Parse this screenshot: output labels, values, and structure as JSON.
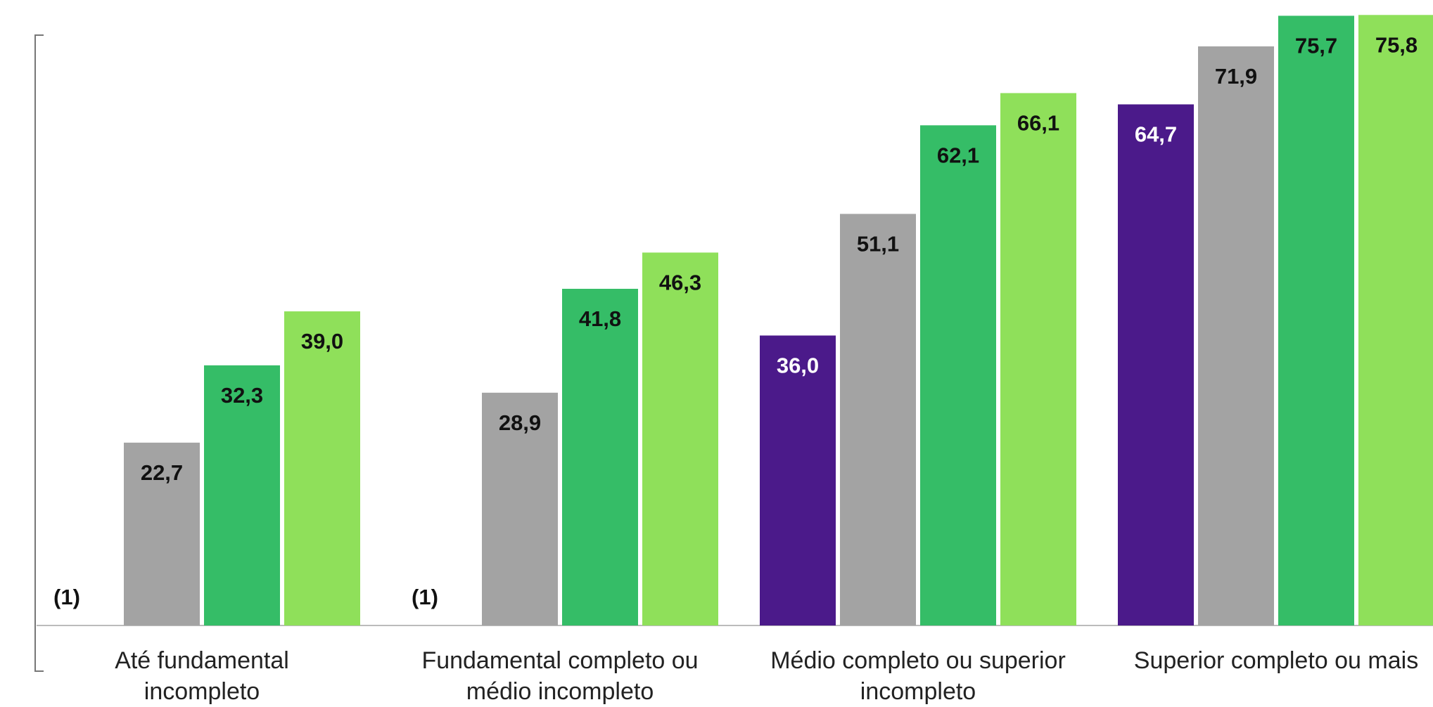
{
  "chart_data": {
    "type": "bar",
    "categories": [
      "Até fundamental incompleto",
      "Fundamental completo ou médio incompleto",
      "Médio completo ou superior incompleto",
      "Superior completo ou mais"
    ],
    "series": [
      {
        "color": "#4b1a8a",
        "values": [
          null,
          null,
          36.0,
          64.7
        ],
        "value_labels": [
          "(1)",
          "(1)",
          "36,0",
          "64,7"
        ]
      },
      {
        "color": "#a3a3a3",
        "values": [
          22.7,
          28.9,
          51.1,
          71.9
        ],
        "value_labels": [
          "22,7",
          "28,9",
          "51,1",
          "71,9"
        ]
      },
      {
        "color": "#35bd67",
        "values": [
          32.3,
          41.8,
          62.1,
          75.7
        ],
        "value_labels": [
          "32,3",
          "41,8",
          "62,1",
          "75,7"
        ]
      },
      {
        "color": "#8fe05a",
        "values": [
          39.0,
          46.3,
          66.1,
          75.8
        ],
        "value_labels": [
          "39,0",
          "46,3",
          "66,1",
          "75,8"
        ]
      }
    ],
    "ylim": [
      0,
      76
    ]
  }
}
